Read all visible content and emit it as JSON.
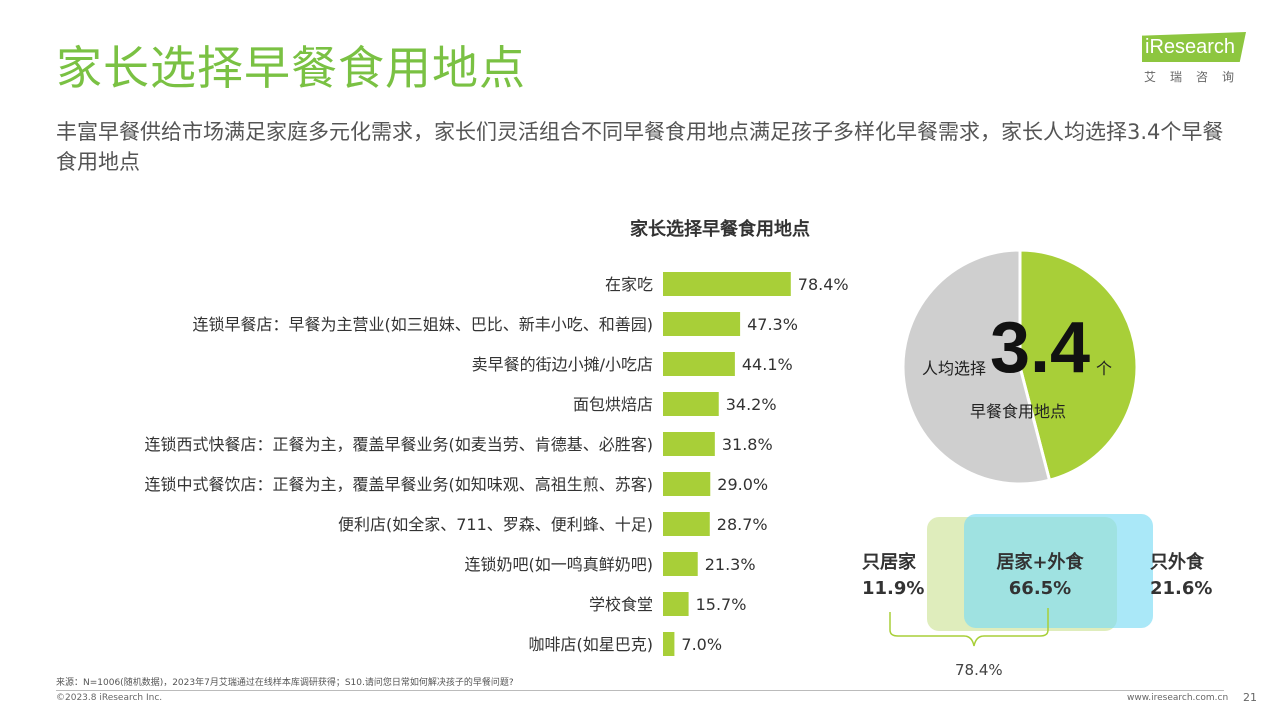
{
  "page": {
    "title": "家长选择早餐食用地点",
    "subtitle": "丰富早餐供给市场满足家庭多元化需求，家长们灵活组合不同早餐食用地点满足孩子多样化早餐需求，家长人均选择3.4个早餐食用地点"
  },
  "logo": {
    "text": "iResearch",
    "sub": "艾瑞咨询"
  },
  "chart_data": [
    {
      "type": "bar",
      "title": "家长选择早餐食用地点",
      "orientation": "horizontal",
      "categories": [
        "在家吃",
        "连锁早餐店：早餐为主营业(如三姐妹、巴比、新丰小吃、和善园)",
        "卖早餐的街边小摊/小吃店",
        "面包烘焙店",
        "连锁西式快餐店：正餐为主，覆盖早餐业务(如麦当劳、肯德基、必胜客)",
        "连锁中式餐饮店：正餐为主，覆盖早餐业务(如知味观、高祖生煎、苏客)",
        "便利店(如全家、711、罗森、便利蜂、十足)",
        "连锁奶吧(如一鸣真鲜奶吧)",
        "学校食堂",
        "咖啡店(如星巴克)"
      ],
      "values": [
        78.4,
        47.3,
        44.1,
        34.2,
        31.8,
        29.0,
        28.7,
        21.3,
        15.7,
        7.0
      ],
      "value_labels": [
        "78.4%",
        "47.3%",
        "44.1%",
        "34.2%",
        "31.8%",
        "29.0%",
        "28.7%",
        "21.3%",
        "15.7%",
        "7.0%"
      ],
      "unit": "%",
      "color": "#a8cf38",
      "grid": false
    },
    {
      "type": "pie",
      "values": [
        3.4,
        4
      ],
      "colors": [
        "#a8cf38",
        "#cfcfcf"
      ]
    }
  ],
  "pie_text": {
    "prefix": "人均选择",
    "big": "3.4",
    "unit": "个",
    "label": "早餐食用地点"
  },
  "venn": {
    "left_name": "只居家",
    "left_value": "11.9%",
    "mid_name": "居家+外食",
    "mid_value": "66.5%",
    "right_name": "只外食",
    "right_value": "21.6%",
    "brace_value": "78.4%"
  },
  "footer": {
    "note": "来源：N=1006(随机数据)，2023年7月艾瑞通过在线样本库调研获得；S10.请问您日常如何解决孩子的早餐问题?",
    "copyright": "©2023.8 iResearch Inc.",
    "url": "www.iresearch.com.cn",
    "page_number": "21"
  },
  "colors": {
    "title": "#7ac143",
    "bar": "#a8cf38",
    "pie_gray": "#cfcfcf",
    "venn_green": "#d2e6a0",
    "venn_blue": "#7ddcf5"
  }
}
